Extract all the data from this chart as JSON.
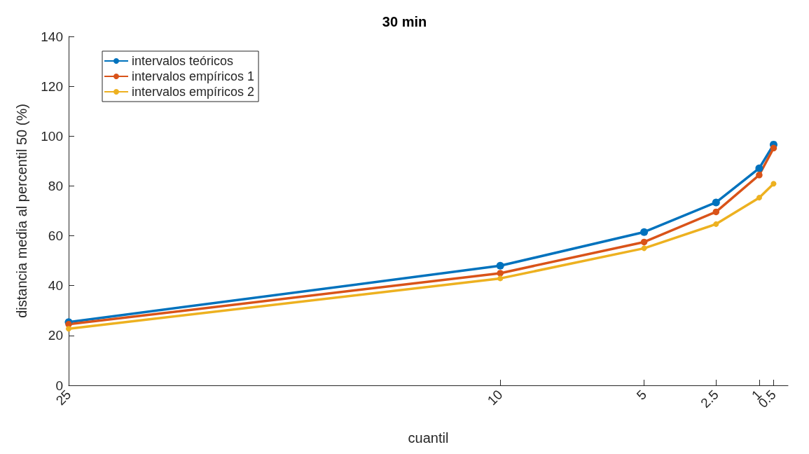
{
  "chart_data": {
    "type": "line",
    "title": "30 min",
    "xlabel": "cuantil",
    "ylabel": "distancia media al percentil 50 (%)",
    "x": [
      25,
      10,
      5,
      2.5,
      1,
      0.5
    ],
    "series": [
      {
        "name": "intervalos teóricos",
        "color": "#0072bd",
        "values": [
          25.4,
          48,
          61.5,
          73.4,
          87.1,
          96.6
        ]
      },
      {
        "name": "intervalos empíricos 1",
        "color": "#d95319",
        "values": [
          24.5,
          45,
          57.5,
          69.6,
          84.4,
          95.2
        ]
      },
      {
        "name": "intervalos empíricos 2",
        "color": "#edb120",
        "values": [
          22.7,
          42.9,
          55,
          64.7,
          75.3,
          80.9
        ]
      }
    ],
    "xlim": [
      25,
      0
    ],
    "xticks": [
      25,
      10,
      5,
      2.5,
      1,
      0.5
    ],
    "ylim": [
      0,
      140
    ],
    "yticks": [
      0,
      20,
      40,
      60,
      80,
      100,
      120,
      140
    ],
    "grid": false,
    "legend": "top left",
    "marker": "circle",
    "line_style": "solid"
  }
}
